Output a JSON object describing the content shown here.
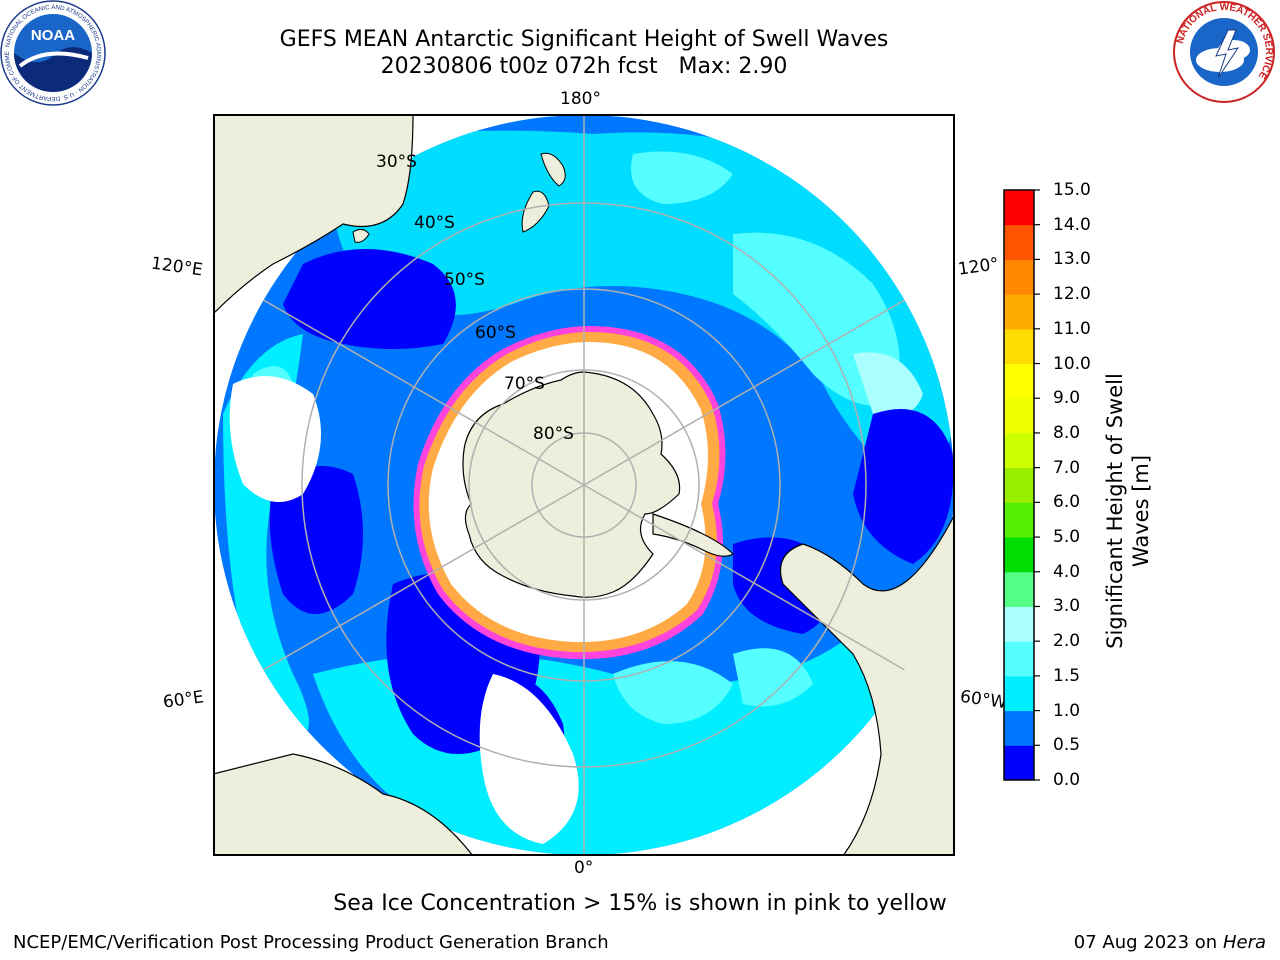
{
  "title": {
    "line1": "GEFS MEAN Antarctic Significant Height of Swell Waves",
    "line2": "20230806 t00z 072h fcst   Max: 2.90"
  },
  "map": {
    "projection": "south-polar-stereographic",
    "longitude_labels": {
      "top": "180°",
      "bottom": "0°",
      "upper_left": "120°E",
      "lower_left": "60°E",
      "upper_right": "120°",
      "lower_right": "60°W"
    },
    "latitude_labels": [
      "30°S",
      "40°S",
      "50°S",
      "60°S",
      "70°S",
      "80°S"
    ],
    "colors": {
      "land": "#eeeedc",
      "open_water_no_swell": "#ffffff",
      "ice_edge": "#ff44dd",
      "gridline": "#b0b0b0"
    }
  },
  "colorbar": {
    "label": "Significant Height of Swell Waves [m]",
    "label_line1": "Significant Height of Swell",
    "label_line2": "Waves [m]",
    "ticks": [
      "15.0",
      "14.0",
      "13.0",
      "12.0",
      "11.0",
      "10.0",
      "9.0",
      "8.0",
      "7.0",
      "6.0",
      "5.0",
      "4.0",
      "3.0",
      "2.0",
      "1.5",
      "1.0",
      "0.5",
      "0.0"
    ],
    "levels": [
      0.0,
      0.5,
      1.0,
      1.5,
      2.0,
      3.0,
      4.0,
      5.0,
      6.0,
      7.0,
      8.0,
      9.0,
      10.0,
      11.0,
      12.0,
      13.0,
      14.0,
      15.0
    ],
    "colors": [
      "#0000ff",
      "#0077ff",
      "#00eeff",
      "#55ffff",
      "#aaffff",
      "#55ff88",
      "#00dd00",
      "#55ee00",
      "#99ee00",
      "#ccff00",
      "#eeff00",
      "#ffff00",
      "#ffdd00",
      "#ffaa00",
      "#ff8800",
      "#ff5500",
      "#ff0000"
    ]
  },
  "caption": "Sea Ice Concentration > 15% is shown in pink to yellow",
  "footer": {
    "left": "NCEP/EMC/Verification Post Processing Product Generation Branch",
    "right_date": "07 Aug 2023 on",
    "right_host": "Hera"
  },
  "logos": {
    "noaa": {
      "text": "NOAA",
      "ring_text": "NATIONAL OCEANIC AND ATMOSPHERIC ADMINISTRATION · U.S. DEPARTMENT OF COMMERCE"
    },
    "nws": {
      "ring_text": "NATIONAL WEATHER SERVICE"
    }
  }
}
